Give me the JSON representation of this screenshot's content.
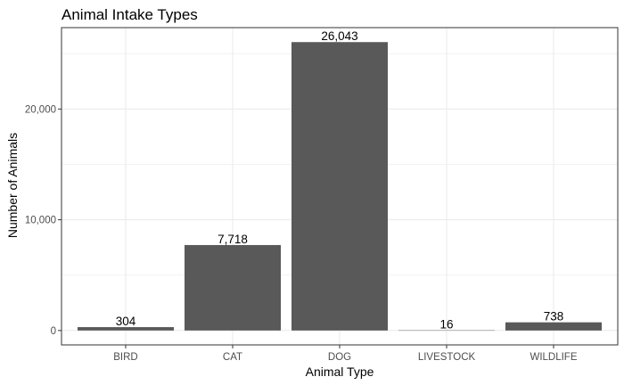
{
  "chart_data": {
    "type": "bar",
    "title": "Animal Intake Types",
    "xlabel": "Animal Type",
    "ylabel": "Number of Animals",
    "categories": [
      "BIRD",
      "CAT",
      "DOG",
      "LIVESTOCK",
      "WILDLIFE"
    ],
    "values": [
      304,
      7718,
      26043,
      16,
      738
    ],
    "data_labels": [
      "304",
      "7,718",
      "26,043",
      "16",
      "738"
    ],
    "yticks": [
      0,
      10000,
      20000
    ],
    "ytick_labels": [
      "0",
      "10,000",
      "20,000"
    ],
    "ylim": [
      -1300,
      27350
    ],
    "grid": true,
    "legend": "none",
    "bar_color": "#595959",
    "panel_border_color": "#333333",
    "grid_color": "#ebebeb"
  }
}
